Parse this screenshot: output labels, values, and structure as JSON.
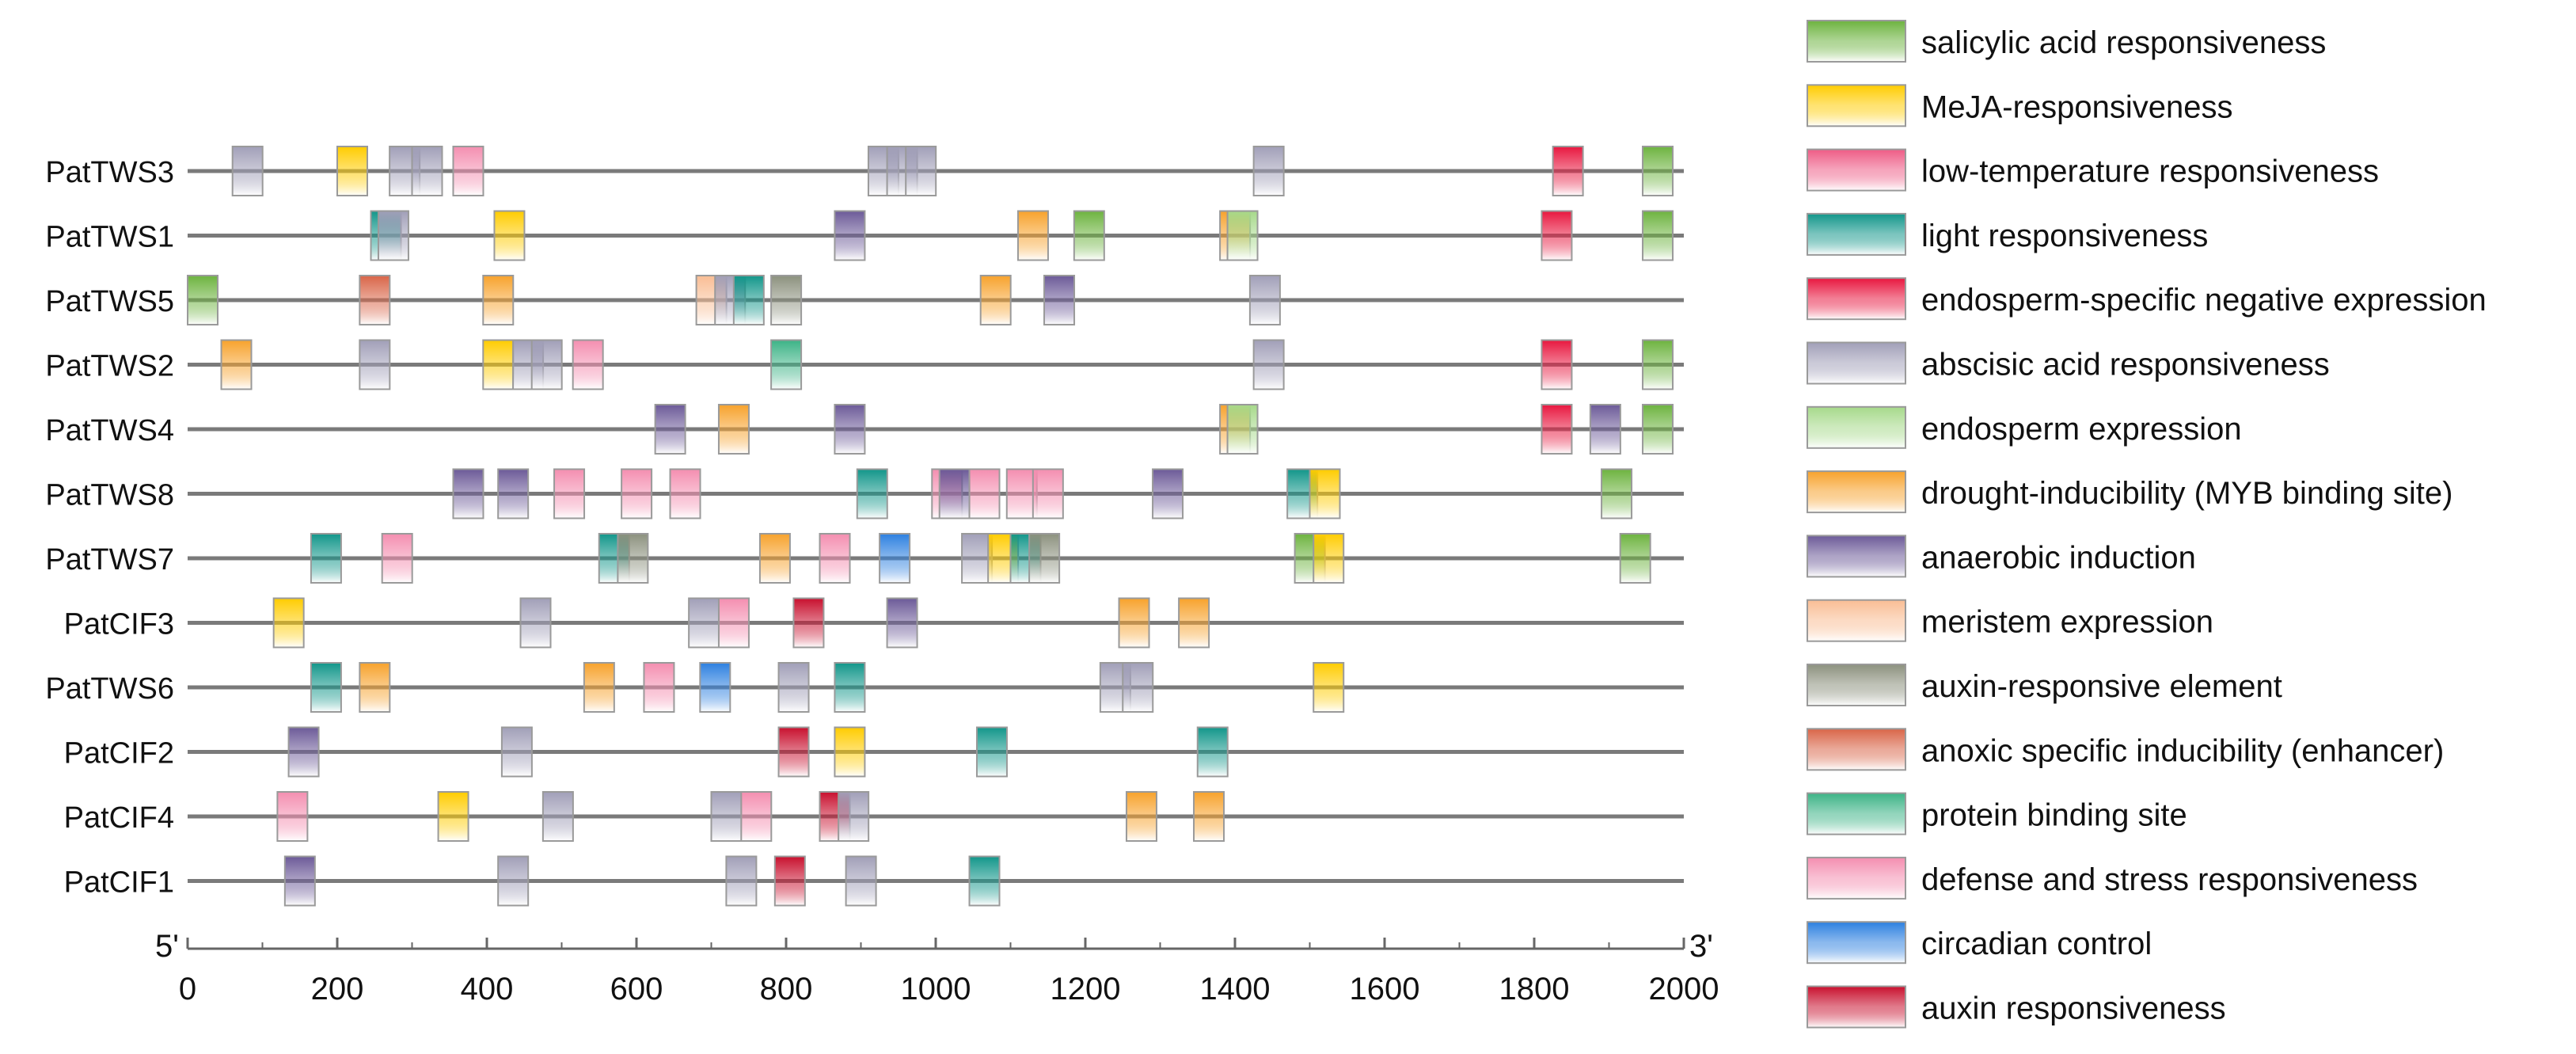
{
  "figure": {
    "axis": {
      "start_label": "5'",
      "end_label": "3'",
      "min": 0,
      "max": 2000,
      "ticks": [
        "0",
        "200",
        "400",
        "600",
        "800",
        "1000",
        "1200",
        "1400",
        "1600",
        "1800",
        "2000"
      ]
    }
  },
  "legend": [
    {
      "key": "sa",
      "label": "salicylic acid responsiveness",
      "color": "#6db33f"
    },
    {
      "key": "meja",
      "label": "MeJA-responsiveness",
      "color": "#ffcc00"
    },
    {
      "key": "lowt",
      "label": "low-temperature responsiveness",
      "color": "#ee5c86"
    },
    {
      "key": "light",
      "label": "light responsiveness",
      "color": "#12968a"
    },
    {
      "key": "endoneg",
      "label": "endosperm-specific negative expression",
      "color": "#e8173f"
    },
    {
      "key": "aba",
      "label": "abscisic acid responsiveness",
      "color": "#a19fb8"
    },
    {
      "key": "endo",
      "label": "endosperm expression",
      "color": "#a6d98a"
    },
    {
      "key": "myb",
      "label": "drought-inducibility (MYB binding site)",
      "color": "#f7a22c"
    },
    {
      "key": "anaer",
      "label": "anaerobic induction",
      "color": "#6c5a98"
    },
    {
      "key": "meri",
      "label": "meristem expression",
      "color": "#f9bd94"
    },
    {
      "key": "auxel",
      "label": "auxin-responsive element",
      "color": "#8c917e"
    },
    {
      "key": "anoxic",
      "label": "anoxic specific inducibility (enhancer)",
      "color": "#d96548"
    },
    {
      "key": "protein",
      "label": "protein binding site",
      "color": "#3cb386"
    },
    {
      "key": "defense",
      "label": "defense and stress responsiveness",
      "color": "#f48eb0"
    },
    {
      "key": "circ",
      "label": "circadian control",
      "color": "#2d80e0"
    },
    {
      "key": "auxr",
      "label": "auxin responsiveness",
      "color": "#c8102e"
    }
  ],
  "genes": [
    {
      "name": "PatTWS3",
      "elements": [
        {
          "pos": 60,
          "type": "aba"
        },
        {
          "pos": 200,
          "type": "meja"
        },
        {
          "pos": 270,
          "type": "aba"
        },
        {
          "pos": 300,
          "type": "aba"
        },
        {
          "pos": 355,
          "type": "defense"
        },
        {
          "pos": 910,
          "type": "aba"
        },
        {
          "pos": 935,
          "type": "aba"
        },
        {
          "pos": 960,
          "type": "aba"
        },
        {
          "pos": 1425,
          "type": "aba"
        },
        {
          "pos": 1825,
          "type": "endoneg"
        },
        {
          "pos": 1945,
          "type": "sa"
        }
      ]
    },
    {
      "name": "PatTWS1",
      "elements": [
        {
          "pos": 245,
          "type": "light"
        },
        {
          "pos": 255,
          "type": "aba"
        },
        {
          "pos": 410,
          "type": "meja"
        },
        {
          "pos": 865,
          "type": "anaer"
        },
        {
          "pos": 1110,
          "type": "myb"
        },
        {
          "pos": 1185,
          "type": "sa"
        },
        {
          "pos": 1380,
          "type": "myb"
        },
        {
          "pos": 1390,
          "type": "endo"
        },
        {
          "pos": 1810,
          "type": "endoneg"
        },
        {
          "pos": 1945,
          "type": "sa"
        }
      ]
    },
    {
      "name": "PatTWS5",
      "elements": [
        {
          "pos": 0,
          "type": "sa"
        },
        {
          "pos": 230,
          "type": "anoxic"
        },
        {
          "pos": 395,
          "type": "myb"
        },
        {
          "pos": 680,
          "type": "meri"
        },
        {
          "pos": 705,
          "type": "aba"
        },
        {
          "pos": 730,
          "type": "light"
        },
        {
          "pos": 780,
          "type": "auxel"
        },
        {
          "pos": 1060,
          "type": "myb"
        },
        {
          "pos": 1145,
          "type": "anaer"
        },
        {
          "pos": 1420,
          "type": "aba"
        }
      ]
    },
    {
      "name": "PatTWS2",
      "elements": [
        {
          "pos": 45,
          "type": "myb"
        },
        {
          "pos": 230,
          "type": "aba"
        },
        {
          "pos": 395,
          "type": "meja"
        },
        {
          "pos": 435,
          "type": "aba"
        },
        {
          "pos": 460,
          "type": "aba"
        },
        {
          "pos": 515,
          "type": "defense"
        },
        {
          "pos": 780,
          "type": "protein"
        },
        {
          "pos": 1425,
          "type": "aba"
        },
        {
          "pos": 1810,
          "type": "endoneg"
        },
        {
          "pos": 1945,
          "type": "sa"
        }
      ]
    },
    {
      "name": "PatTWS4",
      "elements": [
        {
          "pos": 625,
          "type": "anaer"
        },
        {
          "pos": 710,
          "type": "myb"
        },
        {
          "pos": 865,
          "type": "anaer"
        },
        {
          "pos": 1380,
          "type": "myb"
        },
        {
          "pos": 1390,
          "type": "endo"
        },
        {
          "pos": 1810,
          "type": "endoneg"
        },
        {
          "pos": 1875,
          "type": "anaer"
        },
        {
          "pos": 1945,
          "type": "sa"
        }
      ]
    },
    {
      "name": "PatTWS8",
      "elements": [
        {
          "pos": 355,
          "type": "anaer"
        },
        {
          "pos": 415,
          "type": "anaer"
        },
        {
          "pos": 490,
          "type": "defense"
        },
        {
          "pos": 580,
          "type": "defense"
        },
        {
          "pos": 645,
          "type": "defense"
        },
        {
          "pos": 895,
          "type": "light"
        },
        {
          "pos": 995,
          "type": "defense"
        },
        {
          "pos": 1005,
          "type": "anaer"
        },
        {
          "pos": 1045,
          "type": "defense"
        },
        {
          "pos": 1095,
          "type": "defense"
        },
        {
          "pos": 1130,
          "type": "defense"
        },
        {
          "pos": 1290,
          "type": "anaer"
        },
        {
          "pos": 1470,
          "type": "light"
        },
        {
          "pos": 1500,
          "type": "meja"
        },
        {
          "pos": 1890,
          "type": "sa"
        }
      ]
    },
    {
      "name": "PatTWS7",
      "elements": [
        {
          "pos": 165,
          "type": "light"
        },
        {
          "pos": 260,
          "type": "defense"
        },
        {
          "pos": 550,
          "type": "light"
        },
        {
          "pos": 575,
          "type": "auxel"
        },
        {
          "pos": 765,
          "type": "myb"
        },
        {
          "pos": 845,
          "type": "defense"
        },
        {
          "pos": 925,
          "type": "circ"
        },
        {
          "pos": 1035,
          "type": "aba"
        },
        {
          "pos": 1070,
          "type": "meja"
        },
        {
          "pos": 1100,
          "type": "light"
        },
        {
          "pos": 1125,
          "type": "auxel"
        },
        {
          "pos": 1480,
          "type": "sa"
        },
        {
          "pos": 1505,
          "type": "meja"
        },
        {
          "pos": 1915,
          "type": "sa"
        }
      ]
    },
    {
      "name": "PatCIF3",
      "elements": [
        {
          "pos": 115,
          "type": "meja"
        },
        {
          "pos": 445,
          "type": "aba"
        },
        {
          "pos": 670,
          "type": "aba"
        },
        {
          "pos": 710,
          "type": "defense"
        },
        {
          "pos": 810,
          "type": "auxr"
        },
        {
          "pos": 935,
          "type": "anaer"
        },
        {
          "pos": 1245,
          "type": "myb"
        },
        {
          "pos": 1325,
          "type": "myb"
        }
      ]
    },
    {
      "name": "PatTWS6",
      "elements": [
        {
          "pos": 165,
          "type": "light"
        },
        {
          "pos": 230,
          "type": "myb"
        },
        {
          "pos": 530,
          "type": "myb"
        },
        {
          "pos": 610,
          "type": "defense"
        },
        {
          "pos": 685,
          "type": "circ"
        },
        {
          "pos": 790,
          "type": "aba"
        },
        {
          "pos": 865,
          "type": "light"
        },
        {
          "pos": 1220,
          "type": "aba"
        },
        {
          "pos": 1250,
          "type": "aba"
        },
        {
          "pos": 1505,
          "type": "meja"
        }
      ]
    },
    {
      "name": "PatCIF2",
      "elements": [
        {
          "pos": 135,
          "type": "anaer"
        },
        {
          "pos": 420,
          "type": "aba"
        },
        {
          "pos": 790,
          "type": "auxr"
        },
        {
          "pos": 865,
          "type": "meja"
        },
        {
          "pos": 1055,
          "type": "light"
        },
        {
          "pos": 1350,
          "type": "light"
        }
      ]
    },
    {
      "name": "PatCIF4",
      "elements": [
        {
          "pos": 120,
          "type": "defense"
        },
        {
          "pos": 335,
          "type": "meja"
        },
        {
          "pos": 475,
          "type": "aba"
        },
        {
          "pos": 700,
          "type": "aba"
        },
        {
          "pos": 740,
          "type": "defense"
        },
        {
          "pos": 845,
          "type": "auxr"
        },
        {
          "pos": 870,
          "type": "aba"
        },
        {
          "pos": 1255,
          "type": "myb"
        },
        {
          "pos": 1345,
          "type": "myb"
        }
      ]
    },
    {
      "name": "PatCIF1",
      "elements": [
        {
          "pos": 130,
          "type": "anaer"
        },
        {
          "pos": 415,
          "type": "aba"
        },
        {
          "pos": 720,
          "type": "aba"
        },
        {
          "pos": 785,
          "type": "auxr"
        },
        {
          "pos": 880,
          "type": "aba"
        },
        {
          "pos": 1045,
          "type": "light"
        }
      ]
    }
  ]
}
